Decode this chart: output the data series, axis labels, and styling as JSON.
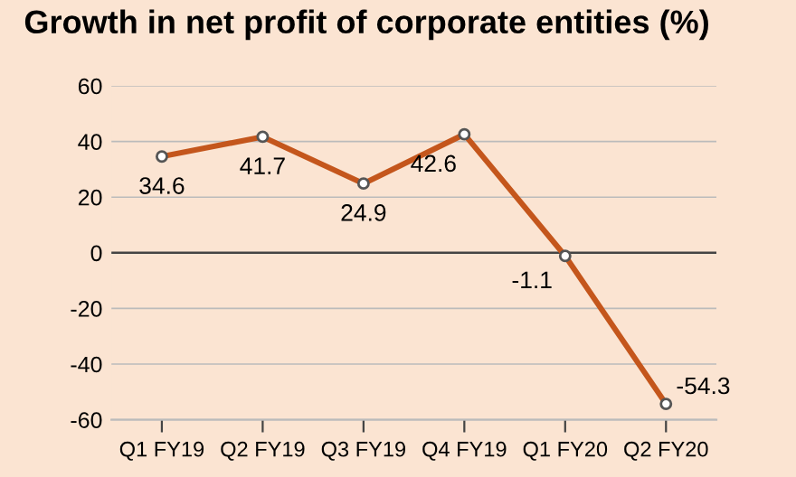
{
  "chart_data": {
    "type": "line",
    "title": "Growth in net profit of corporate entities (%)",
    "categories": [
      "Q1 FY19",
      "Q2 FY19",
      "Q3 FY19",
      "Q4 FY19",
      "Q1 FY20",
      "Q2 FY20"
    ],
    "series": [
      {
        "color": "#c4561c",
        "values": [
          34.6,
          41.7,
          24.9,
          42.6,
          -1.1,
          -54.3
        ]
      }
    ],
    "ylim": [
      -60,
      60
    ],
    "yticks": [
      -60,
      -40,
      -20,
      0,
      20,
      40,
      60
    ],
    "grid": "y",
    "marker": "circle",
    "line_style": "solid",
    "data_labels": true
  }
}
